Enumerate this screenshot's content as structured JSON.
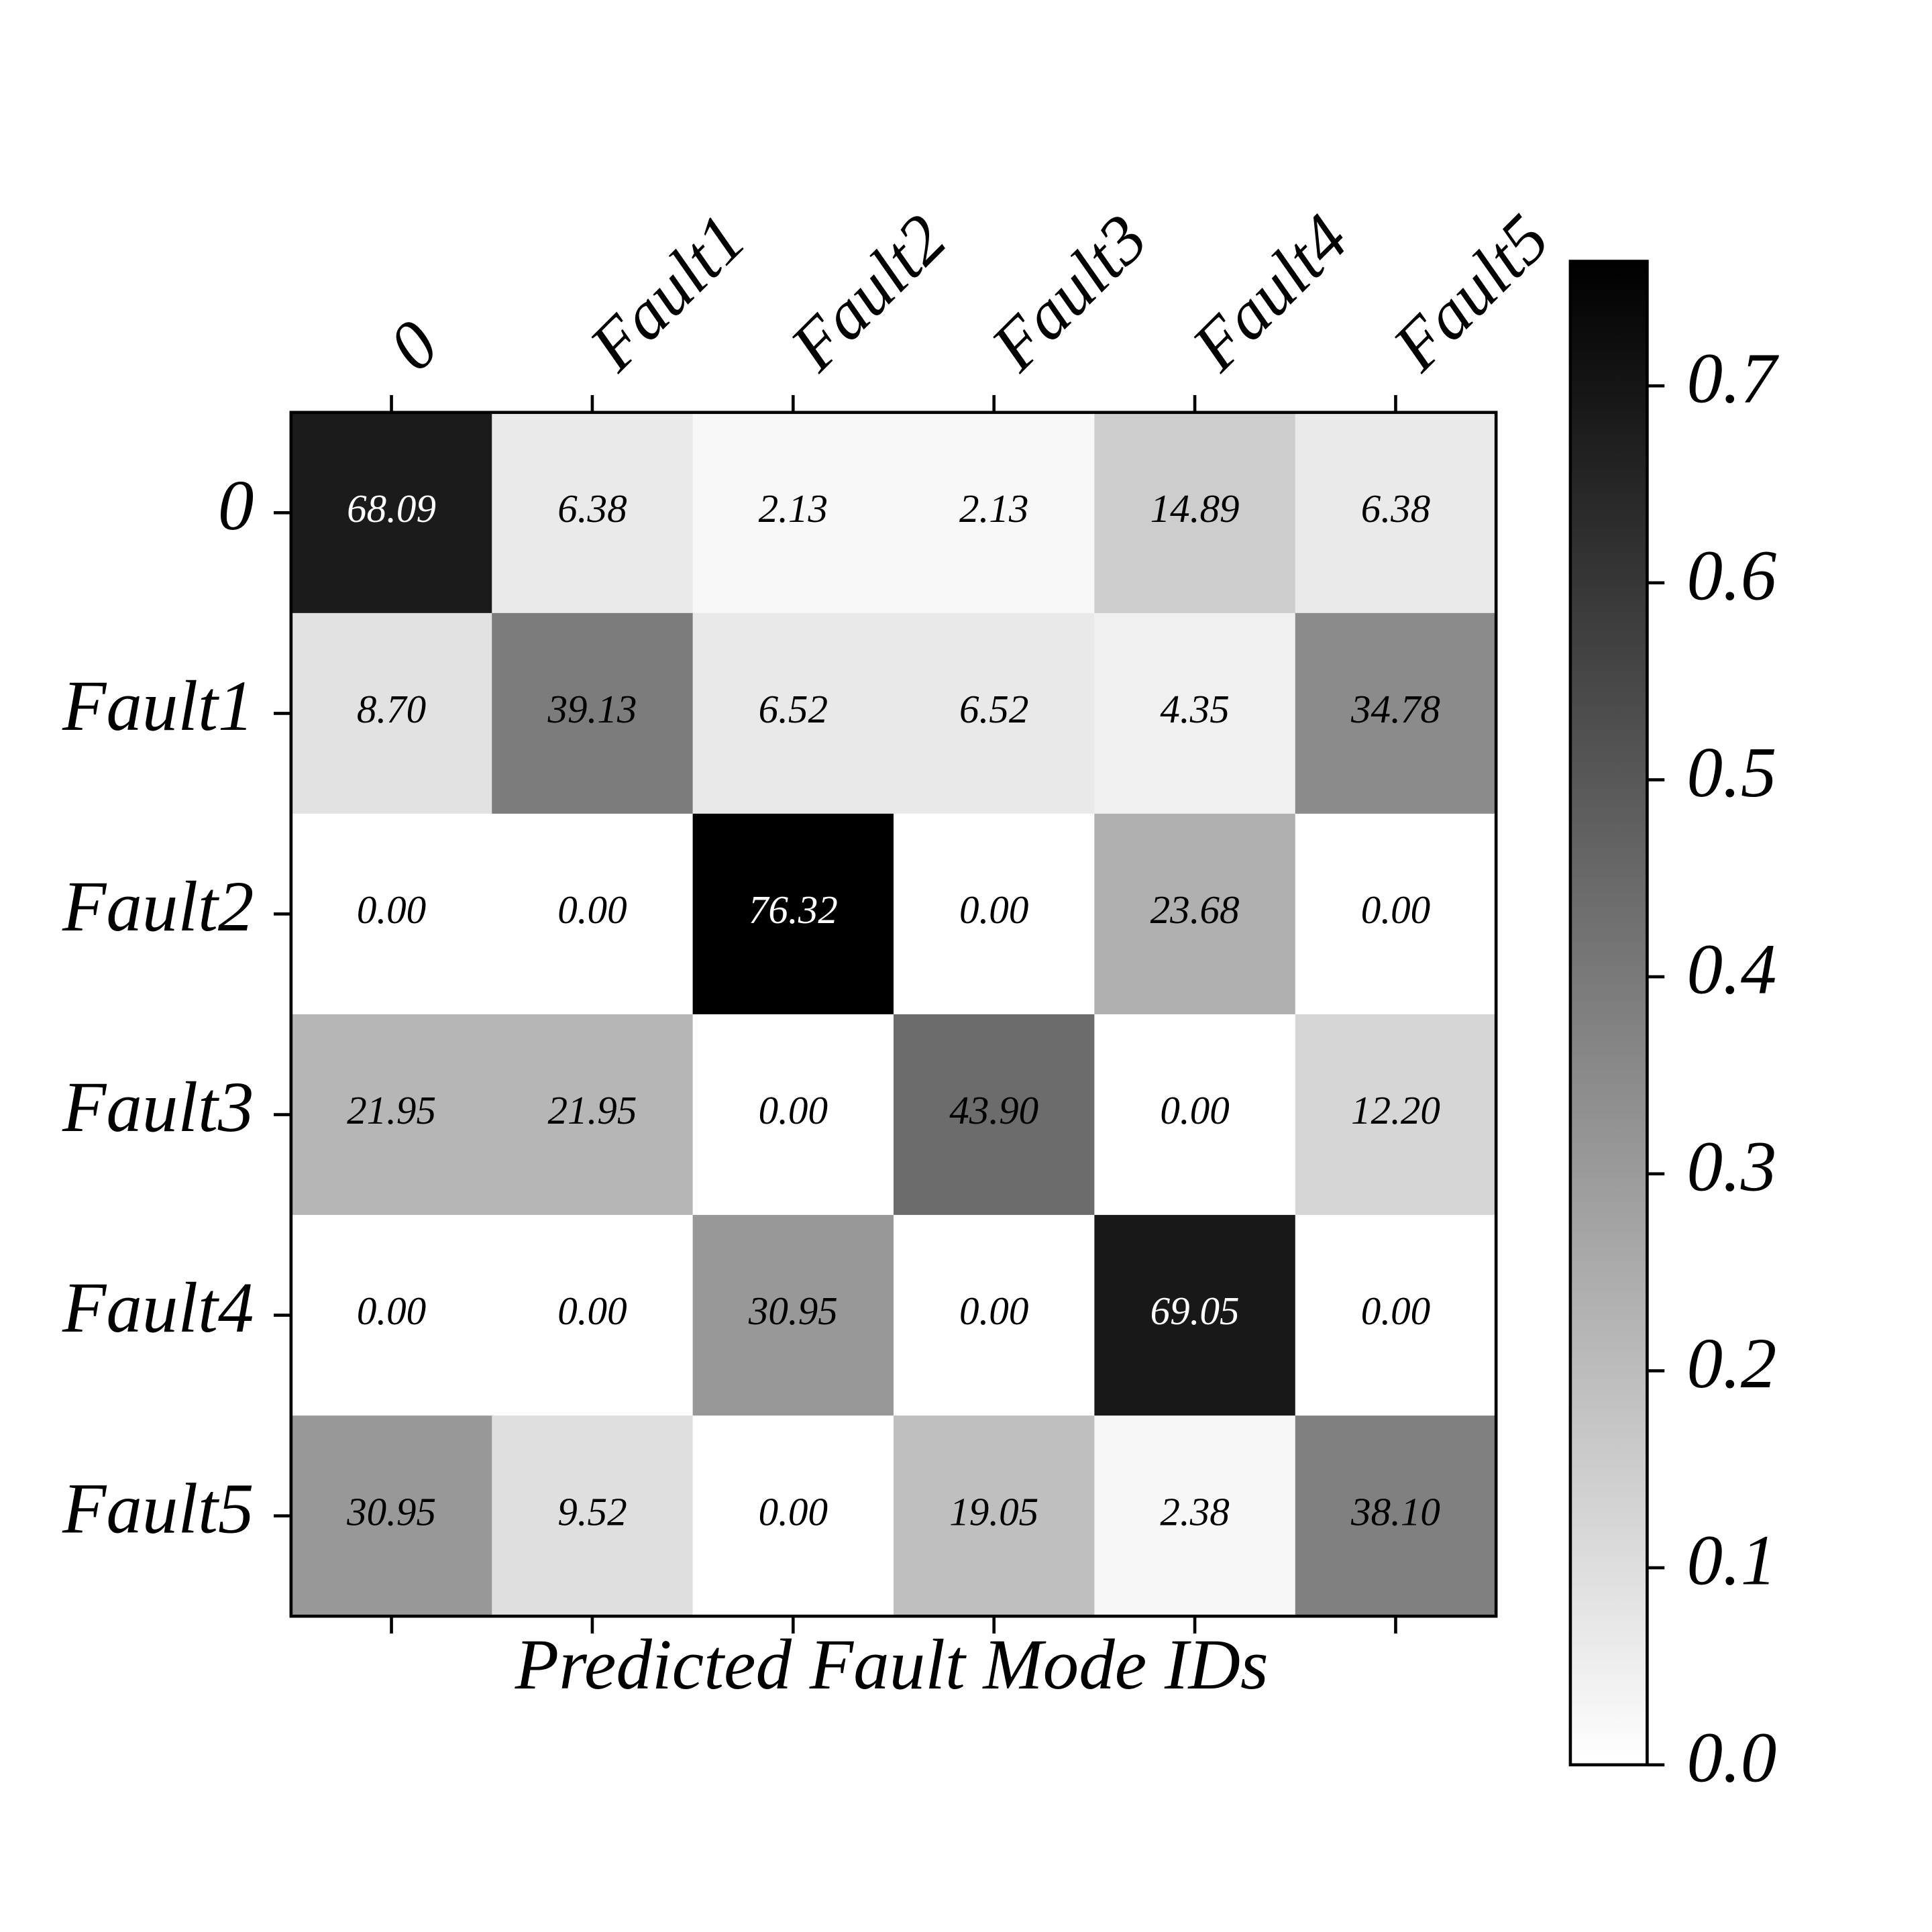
{
  "chart_data": {
    "type": "heatmap",
    "x_label": "Predicted Fault Mode IDs",
    "x_categories": [
      "0",
      "Fault1",
      "Fault2",
      "Fault3",
      "Fault4",
      "Fault5"
    ],
    "y_categories": [
      "0",
      "Fault1",
      "Fault2",
      "Fault3",
      "Fault4",
      "Fault5"
    ],
    "values": [
      [
        0.6809,
        0.0638,
        0.0213,
        0.0213,
        0.1489,
        0.0638
      ],
      [
        0.087,
        0.3913,
        0.0652,
        0.0652,
        0.0435,
        0.3478
      ],
      [
        0,
        0,
        0.7632,
        0,
        0.2368,
        0
      ],
      [
        0.2195,
        0.2195,
        0,
        0.439,
        0,
        0.122
      ],
      [
        0,
        0,
        0.3095,
        0,
        0.6905,
        0
      ],
      [
        0.3095,
        0.0952,
        0,
        0.1905,
        0.0238,
        0.381
      ]
    ],
    "value_labels": [
      [
        "68.09",
        "6.38",
        "2.13",
        "2.13",
        "14.89",
        "6.38"
      ],
      [
        "8.70",
        "39.13",
        "6.52",
        "6.52",
        "4.35",
        "34.78"
      ],
      [
        "0.00",
        "0.00",
        "76.32",
        "0.00",
        "23.68",
        "0.00"
      ],
      [
        "21.95",
        "21.95",
        "0.00",
        "43.90",
        "0.00",
        "12.20"
      ],
      [
        "0.00",
        "0.00",
        "30.95",
        "0.00",
        "69.05",
        "0.00"
      ],
      [
        "30.95",
        "9.52",
        "0.00",
        "19.05",
        "2.38",
        "38.10"
      ]
    ],
    "colormap": [
      "#ffffff",
      "#000000"
    ],
    "clim": [
      0,
      0.7632
    ],
    "cticks": [
      {
        "value": 0,
        "label": "0.0"
      },
      0.1,
      0.2,
      0.3,
      0.4,
      0.5,
      0.6,
      0.7
    ]
  }
}
